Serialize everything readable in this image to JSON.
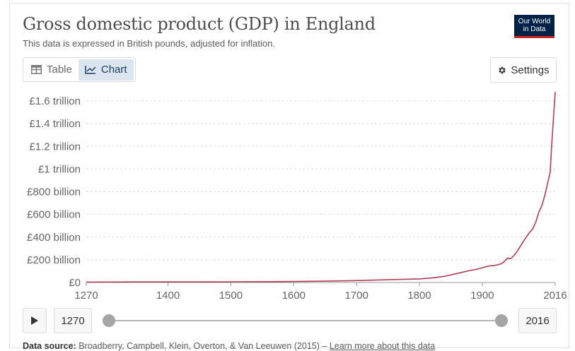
{
  "header": {
    "title": "Gross domestic product (GDP) in England",
    "subtitle": "This data is expressed in British pounds, adjusted for inflation.",
    "logo_line1": "Our World",
    "logo_line2": "in Data"
  },
  "toolbar": {
    "tab_table": "Table",
    "tab_chart": "Chart",
    "active_tab": "Chart",
    "settings_label": "Settings",
    "accent_color": "#dbe5f0"
  },
  "timeline": {
    "start_year": "1270",
    "end_year": "2016",
    "start_value": 1270,
    "end_value": 2016
  },
  "source": {
    "label": "Data source:",
    "text": "Broadberry, Campbell, Klein, Overton, & Van Leeuwen (2015) – ",
    "link": "Learn more about this data"
  },
  "chart_data": {
    "type": "line",
    "title": "Gross domestic product (GDP) in England",
    "subtitle": "This data is expressed in British pounds, adjusted for inflation.",
    "line_color": "#b13d57",
    "grid": true,
    "x_ticks": [
      "1270",
      "1400",
      "1500",
      "1600",
      "1700",
      "1800",
      "1900",
      "2016"
    ],
    "x_tick_values": [
      1270,
      1400,
      1500,
      1600,
      1700,
      1800,
      1900,
      2016
    ],
    "y_ticks": [
      "£0",
      "£200 billion",
      "£400 billion",
      "£600 billion",
      "£800 billion",
      "£1 trillion",
      "£1.2 trillion",
      "£1.4 trillion",
      "£1.6 trillion"
    ],
    "y_tick_values": [
      0,
      200,
      400,
      600,
      800,
      1000,
      1200,
      1400,
      1600
    ],
    "xlim": [
      1270,
      2016
    ],
    "ylim": [
      0,
      1650
    ],
    "series": [
      {
        "values_unit": "billion £",
        "x": [
          1270,
          1350,
          1400,
          1450,
          1500,
          1550,
          1600,
          1650,
          1700,
          1750,
          1800,
          1820,
          1840,
          1860,
          1880,
          1890,
          1900,
          1910,
          1920,
          1930,
          1935,
          1940,
          1945,
          1950,
          1955,
          1960,
          1965,
          1970,
          1975,
          1980,
          1985,
          1990,
          1995,
          2000,
          2005,
          2008,
          2010,
          2016
        ],
        "y": [
          4,
          5,
          5,
          5,
          6,
          7,
          9,
          12,
          17,
          24,
          32,
          40,
          55,
          80,
          105,
          115,
          130,
          145,
          150,
          165,
          185,
          215,
          210,
          235,
          270,
          315,
          360,
          400,
          440,
          470,
          530,
          620,
          680,
          780,
          900,
          970,
          1180,
          1680
        ]
      }
    ]
  }
}
